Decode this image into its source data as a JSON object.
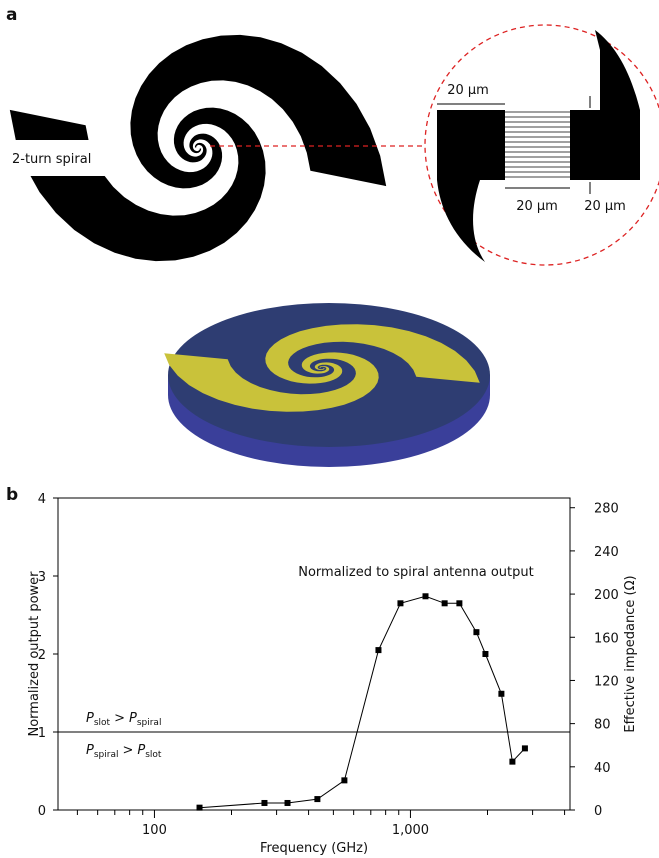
{
  "panel_labels": [
    "a",
    "b"
  ],
  "panel_a": {
    "spiral_label": "2-turn spiral",
    "dimensions": [
      "20 µm",
      "20 µm",
      "20 µm"
    ]
  },
  "chart_data": {
    "type": "line",
    "x_label": "Frequency (GHz)",
    "y_label": "Normalized output power",
    "y2_label": "Effective impedance (Ω)",
    "annotation": "Normalized to spiral antenna output",
    "x_scale": "log",
    "xlim": [
      42,
      4200
    ],
    "xticks": [
      100,
      {
        "value": 1000,
        "label": "1,000"
      }
    ],
    "xminorticks": [
      50,
      60,
      70,
      80,
      90,
      200,
      300,
      400,
      500,
      600,
      700,
      800,
      900,
      2000,
      3000,
      4000
    ],
    "ylim": [
      0,
      4
    ],
    "yticks": [
      0,
      1,
      2,
      3,
      4
    ],
    "y2lim": [
      0,
      289
    ],
    "y2ticks": [
      0,
      40,
      80,
      120,
      160,
      200,
      240,
      280
    ],
    "reference_line": 1,
    "region_labels": [
      {
        "left": "P",
        "left_sub": "slot",
        "op": ">",
        "right": "P",
        "right_sub": "spiral"
      },
      {
        "left": "P",
        "left_sub": "spiral",
        "op": ">",
        "right": "P",
        "right_sub": "slot"
      }
    ],
    "series": [
      {
        "color": "#000000",
        "x": [
          150,
          269,
          331,
          433,
          552,
          750,
          914,
          1145,
          1360,
          1553,
          1810,
          1963,
          2266,
          2502,
          2800
        ],
        "values": [
          0.03,
          0.09,
          0.09,
          0.14,
          0.38,
          2.05,
          2.65,
          2.74,
          2.65,
          2.65,
          2.28,
          2.0,
          1.49,
          0.62,
          0.79
        ]
      }
    ]
  }
}
